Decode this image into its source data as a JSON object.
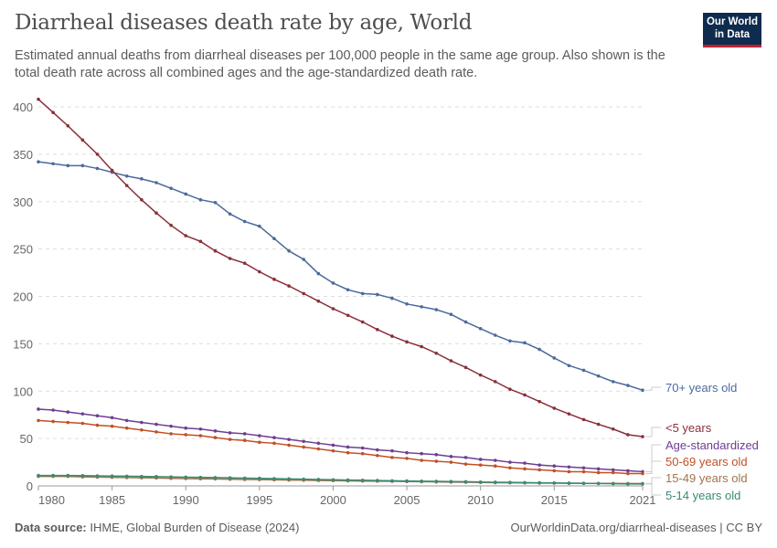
{
  "title": "Diarrheal diseases death rate by age, World",
  "subtitle": "Estimated annual deaths from diarrheal diseases per 100,000 people in the same age group. Also shown is the total death rate across all combined ages and the age-standardized death rate.",
  "logo": "Our World in Data",
  "footer": {
    "source_label": "Data source:",
    "source": "IHME, Global Burden of Disease (2024)",
    "url": "OurWorldinData.org/diarrheal-diseases | CC BY"
  },
  "chart_data": {
    "type": "line",
    "xlim": [
      1980,
      2021
    ],
    "ylim": [
      0,
      400
    ],
    "yticks": [
      0,
      50,
      100,
      150,
      200,
      250,
      300,
      350,
      400
    ],
    "xticks": [
      1980,
      1985,
      1990,
      1995,
      2000,
      2005,
      2010,
      2015,
      2021
    ],
    "grid": "horizontal dashed",
    "legend": "right, end-of-line labels",
    "x": [
      1980,
      1981,
      1982,
      1983,
      1984,
      1985,
      1986,
      1987,
      1988,
      1989,
      1990,
      1991,
      1992,
      1993,
      1994,
      1995,
      1996,
      1997,
      1998,
      1999,
      2000,
      2001,
      2002,
      2003,
      2004,
      2005,
      2006,
      2007,
      2008,
      2009,
      2010,
      2011,
      2012,
      2013,
      2014,
      2015,
      2016,
      2017,
      2018,
      2019,
      2020,
      2021
    ],
    "series": [
      {
        "name": "70+ years old",
        "color": "#4c6a9c",
        "values": [
          342,
          340,
          338,
          338,
          335,
          331,
          327,
          324,
          320,
          314,
          308,
          302,
          299,
          287,
          279,
          274,
          261,
          248,
          239,
          224,
          214,
          207,
          203,
          202,
          198,
          192,
          189,
          186,
          181,
          173,
          166,
          159,
          153,
          151,
          144,
          135,
          127,
          122,
          116,
          110,
          106,
          101
        ]
      },
      {
        "name": "<5 years",
        "color": "#883039",
        "values": [
          408,
          394,
          380,
          365,
          350,
          333,
          317,
          302,
          288,
          275,
          264,
          258,
          248,
          240,
          235,
          226,
          218,
          211,
          203,
          195,
          187,
          180,
          173,
          165,
          158,
          152,
          147,
          140,
          132,
          125,
          117,
          110,
          102,
          96,
          89,
          82,
          76,
          70,
          65,
          60,
          54,
          52
        ]
      },
      {
        "name": "Age-standardized",
        "color": "#6d3e91",
        "values": [
          81,
          80,
          78,
          76,
          74,
          72,
          69,
          67,
          65,
          63,
          61,
          60,
          58,
          56,
          55,
          53,
          51,
          49,
          47,
          45,
          43,
          41,
          40,
          38,
          37,
          35,
          34,
          33,
          31,
          30,
          28,
          27,
          25,
          24,
          22,
          21,
          20,
          19,
          18,
          17,
          16,
          15
        ]
      },
      {
        "name": "50-69 years old",
        "color": "#c15025",
        "values": [
          69,
          68,
          67,
          66,
          64,
          63,
          61,
          59,
          57,
          55,
          54,
          53,
          51,
          49,
          48,
          46,
          45,
          43,
          41,
          39,
          37,
          35,
          34,
          32,
          30,
          29,
          27,
          26,
          25,
          23,
          22,
          21,
          19,
          18,
          17,
          16,
          15,
          15,
          14,
          14,
          13,
          13
        ]
      },
      {
        "name": "15-49 years old",
        "color": "#a2734c",
        "values": [
          10,
          10,
          10,
          9.5,
          9.3,
          9,
          8.8,
          8.5,
          8.3,
          8,
          7.7,
          7.5,
          7.3,
          7,
          6.8,
          6.6,
          6.4,
          6.2,
          6,
          5.7,
          5.5,
          5.3,
          5.1,
          5,
          4.8,
          4.6,
          4.4,
          4.2,
          4,
          3.8,
          3.6,
          3.4,
          3.3,
          3.1,
          3,
          2.9,
          2.8,
          2.7,
          2.6,
          2.6,
          2.5,
          2.5
        ]
      },
      {
        "name": "5-14 years old",
        "color": "#3a8a73",
        "values": [
          11,
          11,
          11,
          10.8,
          10.6,
          10.4,
          10.2,
          10,
          9.8,
          9.5,
          9.2,
          9,
          8.8,
          8.5,
          8.2,
          8,
          7.7,
          7.4,
          7.1,
          6.8,
          6.5,
          6.2,
          6,
          5.7,
          5.4,
          5.2,
          5,
          4.8,
          4.6,
          4.4,
          4.1,
          3.9,
          3.7,
          3.5,
          3.3,
          3.1,
          2.9,
          2.7,
          2.5,
          2.3,
          2.1,
          2
        ]
      }
    ]
  }
}
